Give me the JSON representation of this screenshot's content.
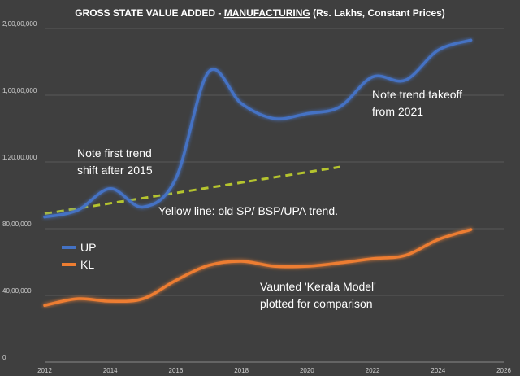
{
  "chart_data": {
    "type": "line",
    "title_prefix": "GROSS STATE VALUE ADDED - ",
    "title_emphasis": "MANUFACTURING",
    "title_suffix": " (Rs. Lakhs, Constant Prices)",
    "xlim": [
      2012,
      2026
    ],
    "ylim": [
      0,
      20000000
    ],
    "x_ticks": [
      "2012",
      "2014",
      "2016",
      "2018",
      "2020",
      "2022",
      "2024",
      "2026"
    ],
    "y_ticks": [
      "0",
      "40,00,000",
      "80,00,000",
      "1,20,00,000",
      "1,60,00,000",
      "2,00,00,000"
    ],
    "grid": "horizontal",
    "legend_position": "left",
    "series": [
      {
        "name": "UP",
        "color": "#4472c4",
        "x": [
          2012,
          2013,
          2014,
          2015,
          2016,
          2017,
          2018,
          2019,
          2020,
          2021,
          2022,
          2023,
          2024,
          2025
        ],
        "values": [
          8700000,
          9100000,
          10400000,
          9300000,
          11000000,
          17400000,
          15500000,
          14600000,
          14900000,
          15300000,
          17100000,
          16900000,
          18700000,
          19300000
        ]
      },
      {
        "name": "KL",
        "color": "#ed7d31",
        "x": [
          2012,
          2013,
          2014,
          2015,
          2016,
          2017,
          2018,
          2019,
          2020,
          2021,
          2022,
          2023,
          2024,
          2025
        ],
        "values": [
          3400000,
          3800000,
          3650000,
          3800000,
          4900000,
          5800000,
          6050000,
          5750000,
          5750000,
          5950000,
          6200000,
          6400000,
          7350000,
          7950000
        ]
      }
    ],
    "trend_line": {
      "color": "#b5c42e",
      "x": [
        2012,
        2021
      ],
      "values": [
        8900000,
        11700000
      ]
    },
    "annotations": [
      {
        "lines": [
          "Note first trend",
          "shift after 2015"
        ]
      },
      {
        "lines": [
          "Note trend takeoff",
          "from 2021"
        ]
      },
      {
        "lines": [
          "Yellow line: old SP/ BSP/UPA trend."
        ]
      },
      {
        "lines": [
          "Vaunted 'Kerala Model'",
          "plotted for comparison"
        ]
      }
    ]
  }
}
